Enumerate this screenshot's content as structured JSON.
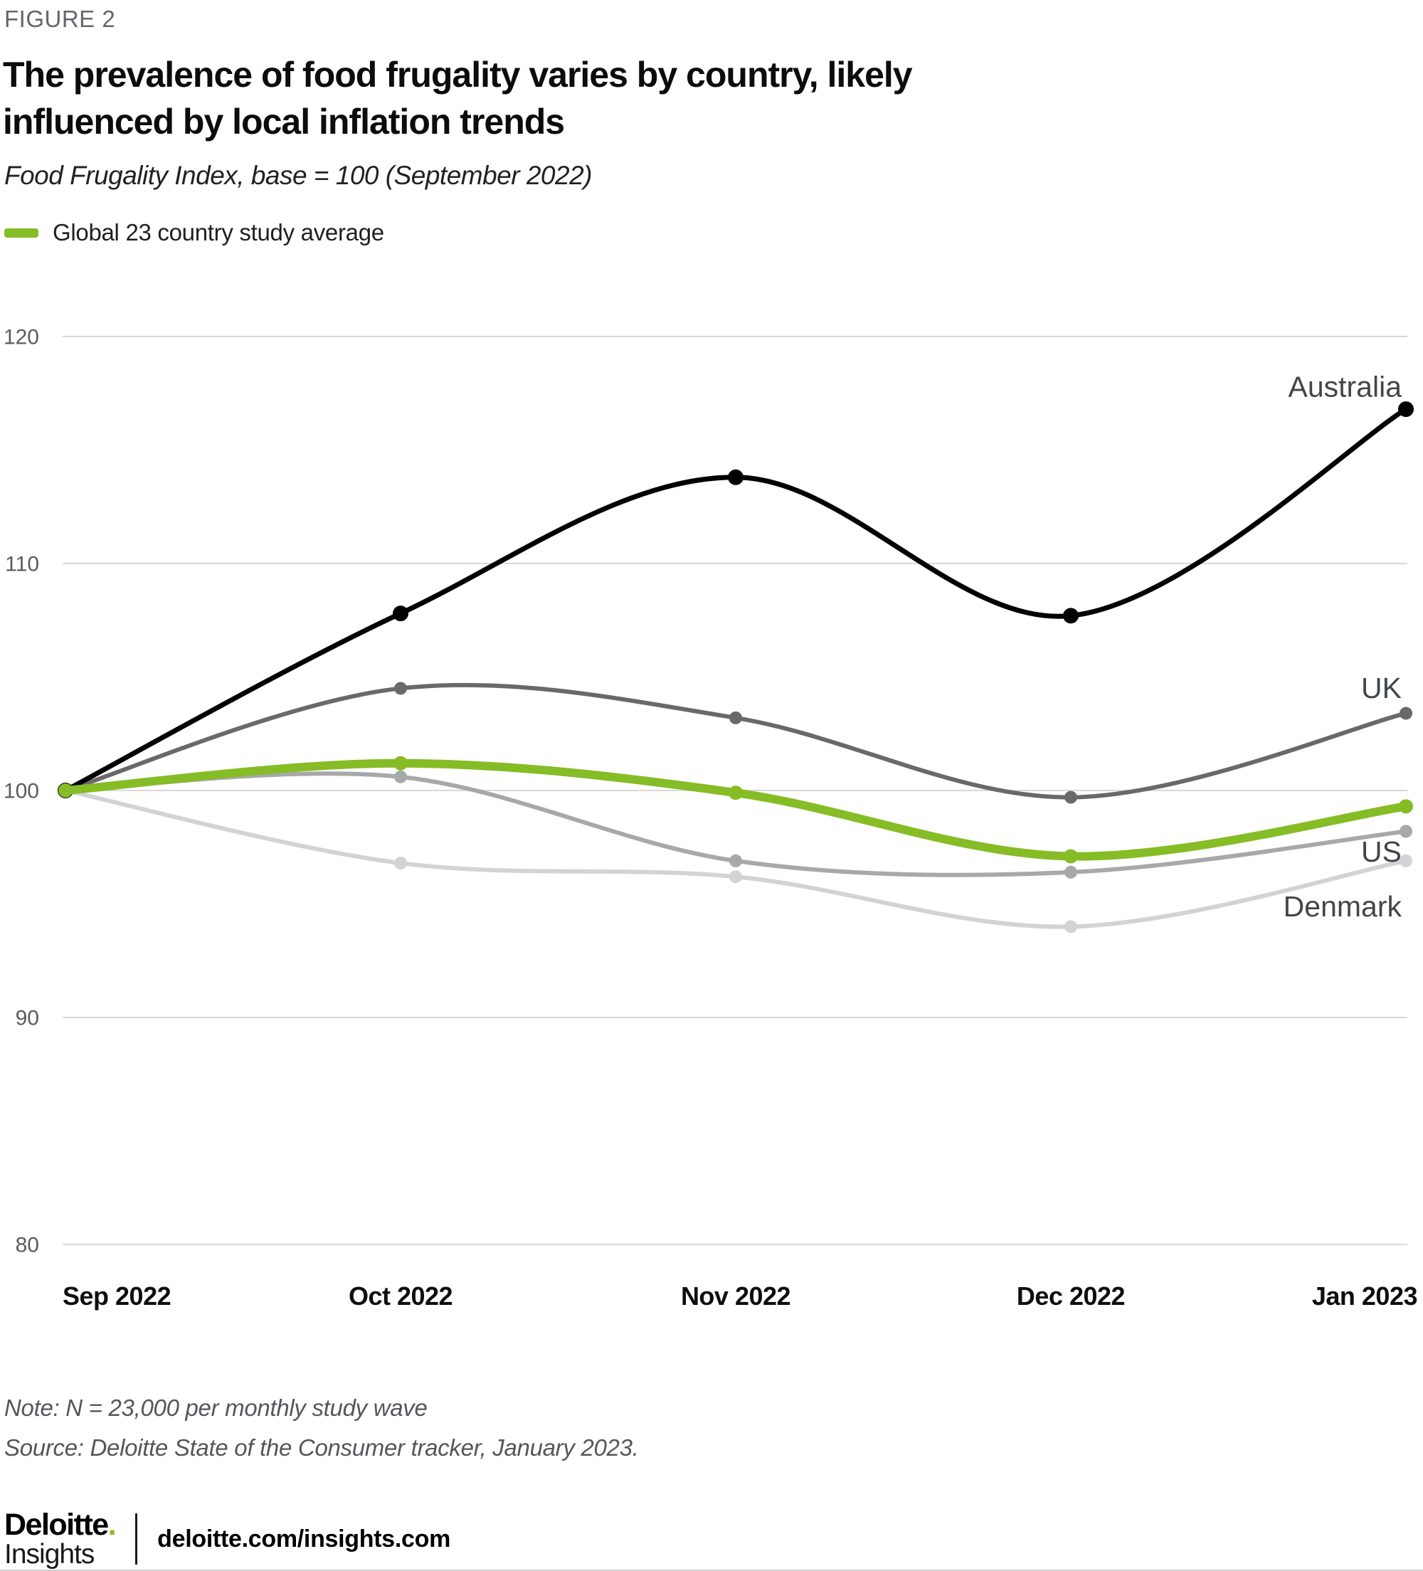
{
  "figure": {
    "label": "FIGURE 2"
  },
  "title": {
    "line1": "The prevalence of food frugality varies by country, likely",
    "line2": "influenced by local inflation trends"
  },
  "subtitle": "Food Frugality Index, base = 100 (September 2022)",
  "legend": {
    "label": "Global 23 country study average",
    "swatch_color": "#86BC25"
  },
  "chart_data": {
    "type": "line",
    "title": "The prevalence of food frugality varies by country, likely influenced by local inflation trends",
    "subtitle": "Food Frugality Index, base = 100 (September 2022)",
    "x": [
      "Sep 2022",
      "Oct 2022",
      "Nov 2022",
      "Dec 2022",
      "Jan 2023"
    ],
    "ylim": [
      80,
      120
    ],
    "yticks": [
      120,
      110,
      100,
      90,
      80
    ],
    "grid": "horizontal",
    "legend_position": "top-left",
    "grid_color": "#d7d8da",
    "series": [
      {
        "name": "Denmark",
        "color": "#d2d3d5",
        "width": 6,
        "dot_radius": 9,
        "values": [
          100,
          96.8,
          96.2,
          94.0,
          96.9
        ],
        "label_position": "below"
      },
      {
        "name": "US",
        "color": "#a7a8aa",
        "width": 6,
        "dot_radius": 9,
        "values": [
          100,
          100.6,
          96.9,
          96.4,
          98.2
        ],
        "label_position": "below"
      },
      {
        "name": "UK",
        "color": "#68696b",
        "width": 6,
        "dot_radius": 9,
        "values": [
          100,
          104.5,
          103.2,
          99.7,
          103.4
        ],
        "label_position": "above"
      },
      {
        "name": "Australia",
        "color": "#010101",
        "width": 7,
        "dot_radius": 11,
        "values": [
          100,
          107.8,
          113.8,
          107.7,
          116.8
        ],
        "label_position": "above"
      },
      {
        "name": "Global 23 country study average",
        "color": "#86BC25",
        "width": 12,
        "dot_radius": 10,
        "values": [
          100,
          101.2,
          99.9,
          97.1,
          99.3
        ],
        "label_position": "legend"
      }
    ]
  },
  "note": "Note: N = 23,000 per monthly study wave",
  "source": "Source: Deloitte State of the Consumer tracker, January 2023.",
  "footer": {
    "brand": "Deloitte",
    "brand_dot": ".",
    "sub_brand": "Insights",
    "url": "deloitte.com/insights.com"
  }
}
